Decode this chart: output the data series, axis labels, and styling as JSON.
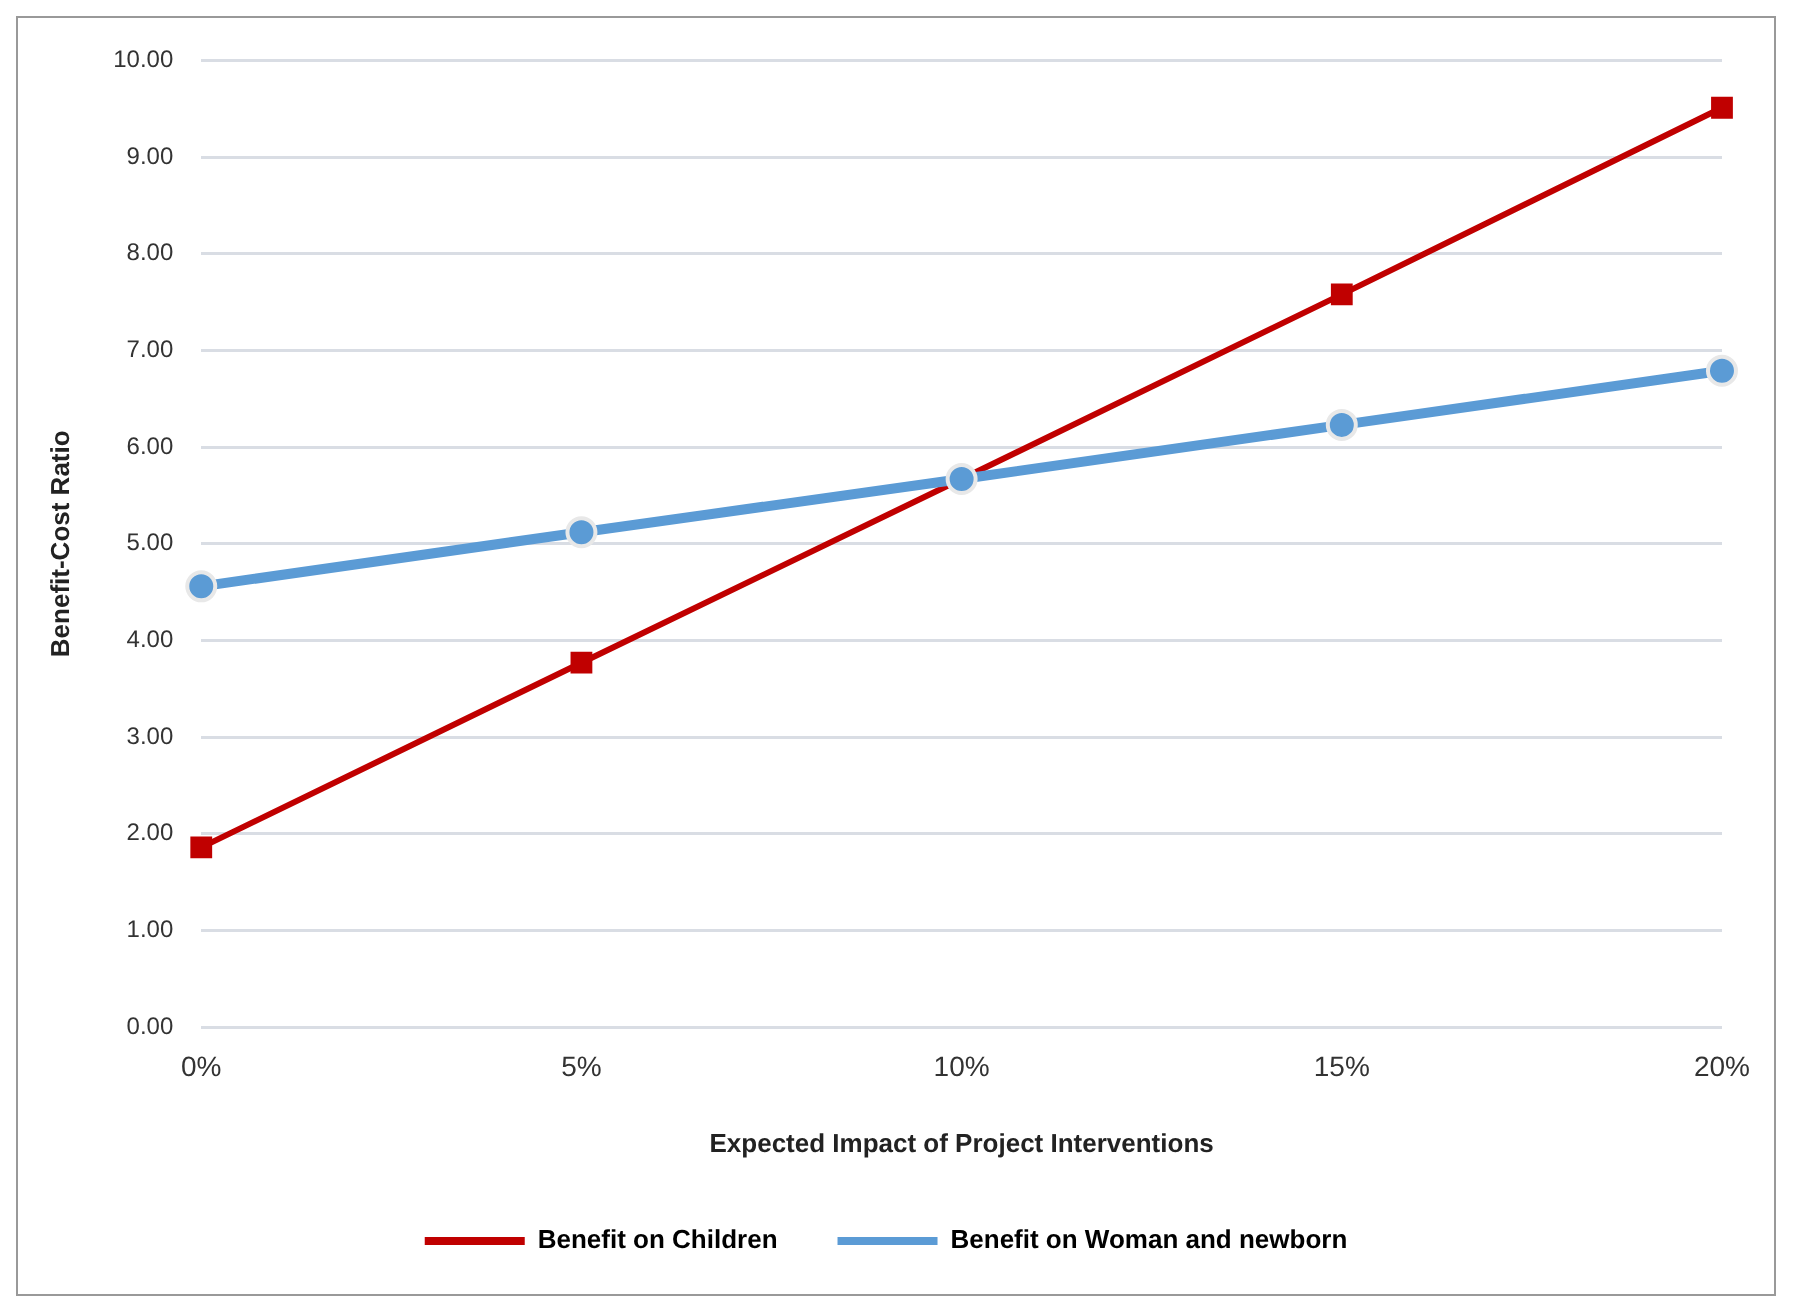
{
  "chart_data": {
    "type": "line",
    "xlabel": "Expected Impact of Project Interventions",
    "ylabel": "Benefit-Cost Ratio",
    "categories": [
      "0%",
      "5%",
      "10%",
      "15%",
      "20%"
    ],
    "series": [
      {
        "name": "Benefit on Children",
        "color": "#c00000",
        "marker": "square",
        "values": [
          1.86,
          3.77,
          5.67,
          7.58,
          9.51
        ]
      },
      {
        "name": "Benefit on Woman and newborn",
        "color": "#5b9bd5",
        "marker": "circle",
        "values": [
          4.56,
          5.12,
          5.67,
          6.23,
          6.79
        ]
      }
    ],
    "ylim": [
      0,
      10
    ],
    "yticks": [
      {
        "value": 0,
        "label": "0.00"
      },
      {
        "value": 1,
        "label": "1.00"
      },
      {
        "value": 2,
        "label": "2.00"
      },
      {
        "value": 3,
        "label": "3.00"
      },
      {
        "value": 4,
        "label": "4.00"
      },
      {
        "value": 5,
        "label": "5.00"
      },
      {
        "value": 6,
        "label": "6.00"
      },
      {
        "value": 7,
        "label": "7.00"
      },
      {
        "value": 8,
        "label": "8.00"
      },
      {
        "value": 9,
        "label": "9.00"
      },
      {
        "value": 10,
        "label": "10.00"
      }
    ],
    "grid": "y",
    "legend": "bottom",
    "line_style": "solid"
  }
}
